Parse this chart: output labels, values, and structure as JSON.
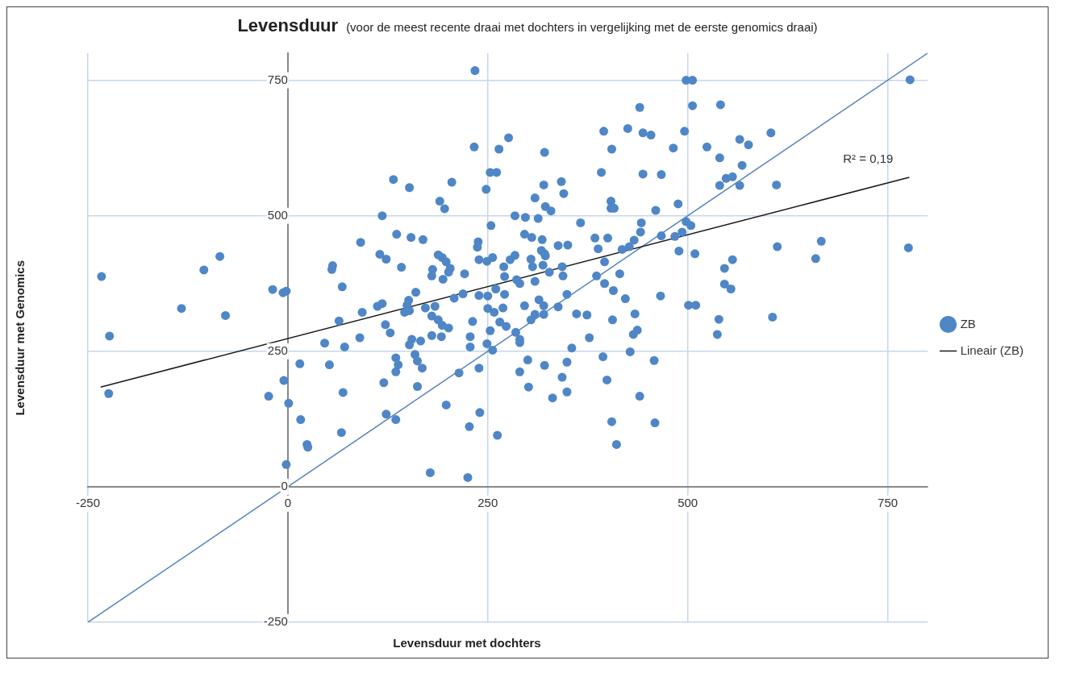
{
  "chart_data": {
    "type": "scatter",
    "title": "Levensduur",
    "subtitle": "(voor de meest recente draai met dochters in vergelijking met de eerste genomics draai)",
    "xlabel": "Levensduur met dochters",
    "ylabel": "Levensduur met Genomics",
    "xlim": [
      -250,
      800
    ],
    "ylim": [
      -250,
      800
    ],
    "xticks": [
      -250,
      0,
      250,
      500,
      750
    ],
    "yticks": [
      -250,
      0,
      250,
      500,
      750
    ],
    "grid": true,
    "legend": "right",
    "line_style": "solid",
    "annotations": [
      "R² = 0,19"
    ],
    "series": [
      {
        "name": "ZB",
        "color": "#4f86c6",
        "marker": "circle",
        "x": [
          -233,
          -223,
          -224,
          -133,
          -105,
          -85,
          -78,
          -19,
          -6,
          -2,
          -24,
          -5,
          1,
          -2,
          16,
          15,
          24,
          25,
          52,
          46,
          56,
          55,
          68,
          91,
          64,
          93,
          90,
          71,
          69,
          67,
          234,
          440,
          395,
          425,
          444,
          233,
          264,
          276,
          321,
          405,
          132,
          152,
          205,
          190,
          196,
          253,
          261,
          248,
          320,
          342,
          345,
          309,
          322,
          329,
          392,
          444,
          404,
          404,
          408,
          118,
          284,
          297,
          313,
          254,
          366,
          442,
          441,
          433,
          136,
          154,
          169,
          238,
          237,
          296,
          305,
          318,
          384,
          400,
          388,
          338,
          350,
          317,
          321,
          322,
          418,
          427,
          115,
          123,
          142,
          188,
          193,
          198,
          181,
          180,
          203,
          201,
          194,
          221,
          239,
          249,
          256,
          270,
          278,
          284,
          304,
          306,
          319,
          271,
          286,
          290,
          309,
          327,
          343,
          344,
          386,
          396,
          415,
          396,
          407,
          422,
          434,
          406,
          432,
          437,
          428,
          394,
          399,
          440,
          405,
          411,
          160,
          151,
          149,
          146,
          152,
          118,
          112,
          122,
          128,
          172,
          184,
          180,
          188,
          193,
          201,
          208,
          219,
          239,
          250,
          260,
          271,
          250,
          258,
          269,
          265,
          273,
          231,
          253,
          296,
          314,
          320,
          309,
          320,
          304,
          338,
          349,
          361,
          374,
          285,
          290,
          290,
          180,
          192,
          228,
          228,
          249,
          256,
          155,
          152,
          166,
          159,
          162,
          168,
          135,
          138,
          135,
          120,
          162,
          214,
          239,
          355,
          377,
          300,
          321,
          349,
          290,
          301,
          343,
          349,
          331,
          198,
          123,
          135,
          240,
          227,
          262,
          178,
          225,
          498,
          506,
          778,
          506,
          541,
          454,
          496,
          482,
          524,
          540,
          565,
          576,
          604,
          568,
          467,
          548,
          556,
          540,
          565,
          611,
          460,
          488,
          498,
          504,
          467,
          484,
          493,
          489,
          509,
          612,
          667,
          660,
          776,
          556,
          546,
          546,
          554,
          466,
          501,
          510,
          539,
          606,
          537,
          458,
          459
        ],
        "values": [
          388,
          278,
          172,
          329,
          400,
          425,
          316,
          364,
          358,
          361,
          167,
          196,
          154,
          41,
          124,
          227,
          78,
          73,
          225,
          265,
          408,
          401,
          369,
          451,
          306,
          322,
          275,
          258,
          174,
          100,
          768,
          700,
          656,
          661,
          653,
          627,
          623,
          644,
          617,
          623,
          567,
          552,
          562,
          527,
          513,
          580,
          580,
          549,
          557,
          563,
          541,
          533,
          517,
          509,
          580,
          577,
          527,
          514,
          514,
          500,
          500,
          497,
          495,
          482,
          487,
          487,
          470,
          455,
          466,
          460,
          456,
          452,
          442,
          466,
          460,
          456,
          459,
          459,
          439,
          445,
          446,
          436,
          430,
          426,
          438,
          443,
          429,
          420,
          405,
          428,
          423,
          415,
          401,
          389,
          403,
          396,
          383,
          393,
          419,
          416,
          423,
          406,
          419,
          427,
          420,
          406,
          409,
          388,
          382,
          375,
          379,
          396,
          406,
          389,
          389,
          415,
          393,
          375,
          362,
          347,
          319,
          308,
          281,
          289,
          249,
          240,
          197,
          167,
          120,
          78,
          359,
          344,
          335,
          322,
          325,
          338,
          333,
          299,
          284,
          330,
          333,
          315,
          308,
          298,
          293,
          348,
          356,
          353,
          352,
          365,
          355,
          329,
          322,
          330,
          304,
          296,
          305,
          288,
          334,
          345,
          334,
          318,
          318,
          308,
          332,
          355,
          319,
          317,
          285,
          272,
          266,
          279,
          277,
          277,
          258,
          264,
          252,
          272,
          262,
          269,
          244,
          232,
          219,
          238,
          225,
          212,
          192,
          185,
          210,
          219,
          256,
          275,
          234,
          224,
          230,
          212,
          184,
          202,
          175,
          164,
          151,
          134,
          124,
          137,
          111,
          95,
          26,
          17,
          750,
          750,
          751,
          703,
          705,
          649,
          656,
          625,
          627,
          607,
          641,
          631,
          653,
          593,
          576,
          569,
          572,
          556,
          556,
          557,
          510,
          522,
          489,
          482,
          463,
          462,
          470,
          435,
          430,
          443,
          453,
          421,
          441,
          419,
          403,
          374,
          365,
          352,
          335,
          335,
          309,
          313,
          281,
          233,
          118
        ]
      },
      {
        "type": "line",
        "name": "Lineair (ZB)",
        "color": "#1a1a1a",
        "marker": "none",
        "x": [
          -234,
          777
        ],
        "values": [
          184,
          571
        ]
      },
      {
        "type": "line",
        "color": "#4f81bd",
        "marker": "none",
        "x": [
          -250,
          800
        ],
        "values": [
          -250,
          800
        ]
      }
    ]
  }
}
